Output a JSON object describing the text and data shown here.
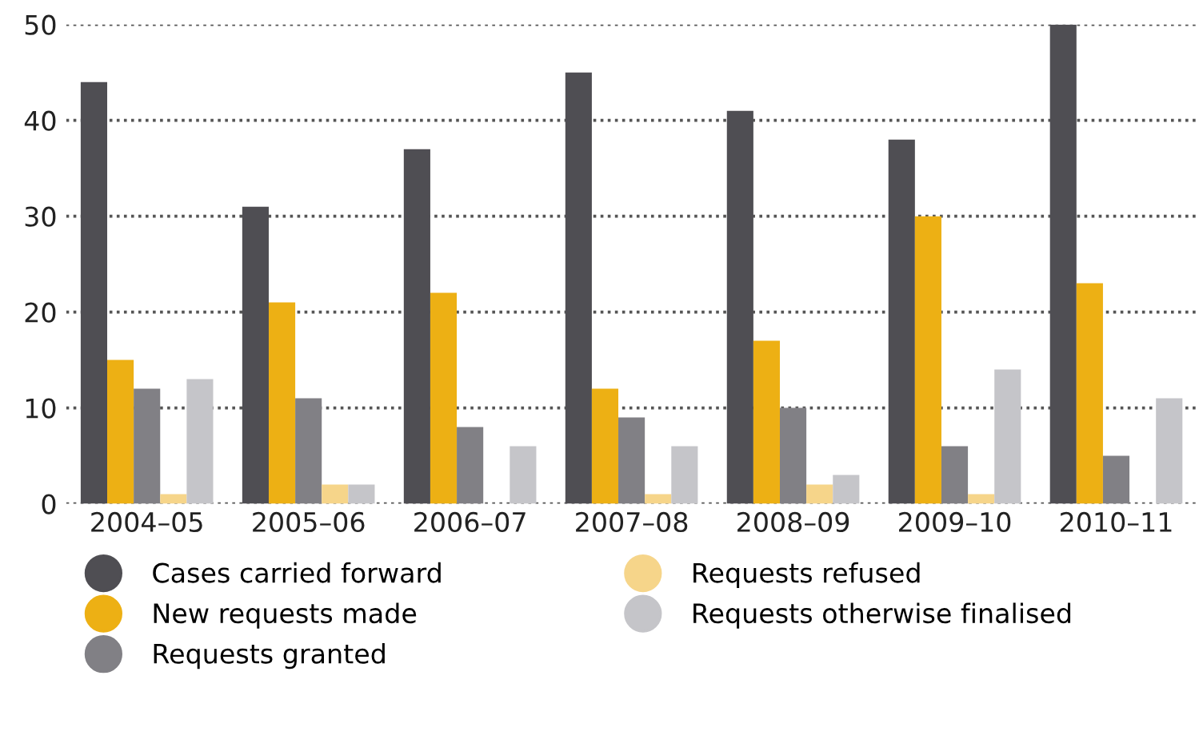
{
  "chart_data": {
    "type": "bar",
    "categories": [
      "2004–05",
      "2005–06",
      "2006–07",
      "2007–08",
      "2008–09",
      "2009–10",
      "2010–11"
    ],
    "series": [
      {
        "name": "Cases carried forward",
        "color": "#4f4e53",
        "values": [
          44,
          31,
          37,
          45,
          41,
          38,
          50
        ]
      },
      {
        "name": "New requests made",
        "color": "#edb014",
        "values": [
          15,
          21,
          22,
          12,
          17,
          30,
          23
        ]
      },
      {
        "name": "Requests granted",
        "color": "#818085",
        "values": [
          12,
          11,
          8,
          9,
          10,
          6,
          5
        ]
      },
      {
        "name": "Requests refused",
        "color": "#f6d58a",
        "values": [
          1,
          2,
          0,
          1,
          2,
          1,
          0
        ]
      },
      {
        "name": "Requests otherwise finalised",
        "color": "#c5c5c9",
        "values": [
          13,
          2,
          6,
          6,
          3,
          14,
          11
        ]
      }
    ],
    "ylim": [
      0,
      50
    ],
    "yticks": [
      0,
      10,
      20,
      30,
      40,
      50
    ],
    "grid": "y",
    "legend": "bottom"
  }
}
